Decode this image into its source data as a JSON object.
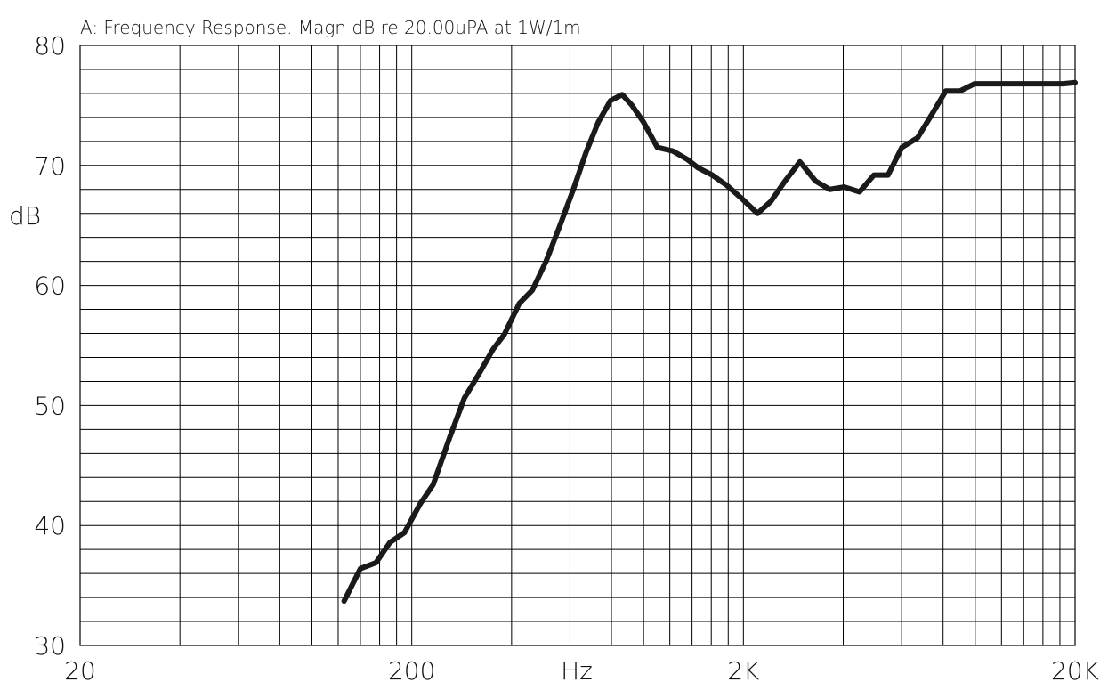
{
  "chart_data": {
    "type": "line",
    "title": "A: Frequency Response. Magn dB re 20.00uPA  at 1W/1m",
    "xlabel": "Hz",
    "ylabel": "dB",
    "x_scale": "log",
    "xlim": [
      20,
      20000
    ],
    "ylim": [
      30,
      80
    ],
    "x_tick_values": [
      20,
      200,
      2000,
      20000
    ],
    "x_tick_labels": [
      "20",
      "200",
      "2K",
      "20K"
    ],
    "y_tick_values": [
      30,
      40,
      50,
      60,
      70,
      80
    ],
    "y_tick_labels": [
      "30",
      "40",
      "50",
      "60",
      "70",
      "80"
    ],
    "y_gridline_step": 2,
    "grid": true,
    "legend": "none",
    "line_color": "#1a1a1a",
    "grid_color": "#000000",
    "series": [
      {
        "x": [
          125,
          140,
          156,
          172,
          190,
          212,
          232,
          260,
          288,
          320,
          352,
          380,
          422,
          462,
          508,
          558,
          614,
          671,
          730,
          795,
          862,
          923,
          1000,
          1100,
          1225,
          1355,
          1460,
          1610,
          1790,
          1985,
          2205,
          2420,
          2670,
          2960,
          3300,
          3640,
          4030,
          4480,
          4950,
          5460,
          6010,
          6700,
          7420,
          8150,
          9000,
          9950,
          11100,
          12250,
          13600,
          15100,
          16700,
          18400,
          20000
        ],
        "y": [
          33.7,
          36.4,
          36.9,
          38.6,
          39.4,
          41.8,
          43.4,
          47.3,
          50.6,
          52.7,
          54.7,
          55.9,
          58.5,
          59.6,
          62.0,
          64.9,
          68.0,
          71.1,
          73.6,
          75.4,
          75.9,
          75.0,
          73.6,
          71.5,
          71.2,
          70.5,
          69.8,
          69.2,
          68.3,
          67.2,
          66.0,
          67.0,
          68.7,
          70.3,
          68.7,
          68.0,
          68.2,
          67.8,
          69.2,
          69.2,
          71.5,
          72.3,
          74.3,
          76.2,
          76.2,
          76.8,
          76.8,
          76.8,
          76.8,
          76.8,
          76.8,
          76.8,
          76.9
        ]
      }
    ]
  }
}
